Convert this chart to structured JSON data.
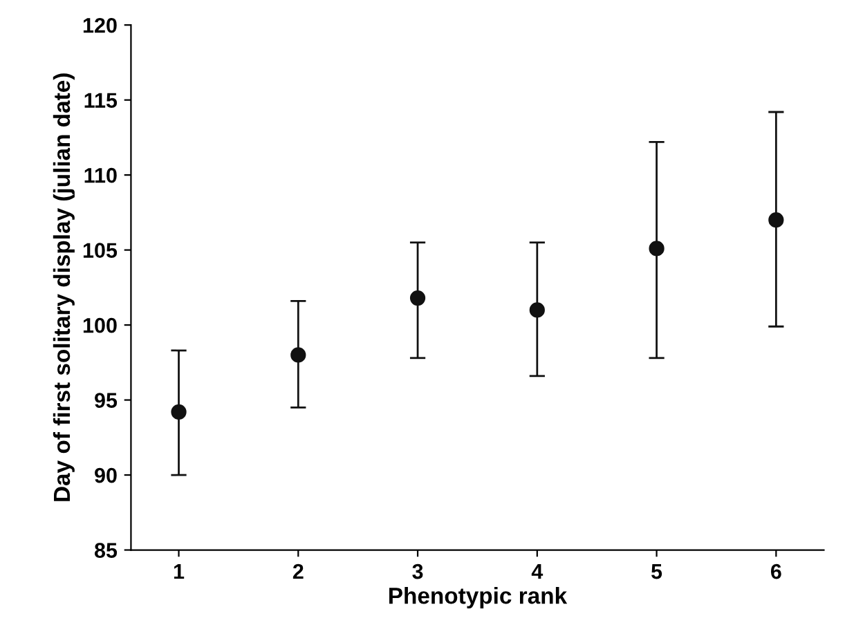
{
  "chart_data": {
    "type": "scatter",
    "xlabel": "Phenotypic rank",
    "ylabel": "Day of first solitary display (julian date)",
    "x": [
      1,
      2,
      3,
      4,
      5,
      6
    ],
    "values": [
      94.2,
      98.0,
      101.8,
      101.0,
      105.1,
      107.0
    ],
    "errors": [
      [
        90.0,
        98.3
      ],
      [
        94.5,
        101.6
      ],
      [
        97.8,
        105.5
      ],
      [
        96.6,
        105.5
      ],
      [
        97.8,
        112.2
      ],
      [
        99.9,
        114.2
      ]
    ],
    "color": "#111111",
    "marker": "circle",
    "xlim": [
      0.6,
      6.4
    ],
    "xticks": [
      1,
      2,
      3,
      4,
      5,
      6
    ],
    "ylim": [
      85,
      120
    ],
    "yticks": [
      85,
      90,
      95,
      100,
      105,
      110,
      115,
      120
    ],
    "grid": false,
    "legend": false
  }
}
